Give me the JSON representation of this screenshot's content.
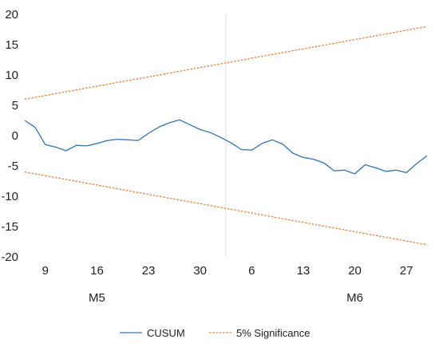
{
  "chart_data": {
    "type": "line",
    "title": "",
    "xlabel": "",
    "ylabel": "",
    "ylim": [
      -20,
      20
    ],
    "grid": false,
    "legend_position": "bottom",
    "y_ticks": [
      20,
      15,
      10,
      5,
      0,
      -5,
      -10,
      -15,
      -20
    ],
    "x_tick_labels": [
      {
        "label": "9",
        "index": 2
      },
      {
        "label": "16",
        "index": 7
      },
      {
        "label": "23",
        "index": 12
      },
      {
        "label": "30",
        "index": 17
      },
      {
        "label": "6",
        "index": 22
      },
      {
        "label": "13",
        "index": 27
      },
      {
        "label": "20",
        "index": 32
      },
      {
        "label": "27",
        "index": 37
      }
    ],
    "month_labels": [
      {
        "label": "M5",
        "index": 7
      },
      {
        "label": "M6",
        "index": 32
      }
    ],
    "month_divider_index": 19.5,
    "n_points": 40,
    "series": [
      {
        "name": "CUSUM",
        "color": "#2e75b6",
        "style": "solid",
        "values": [
          2.5,
          1.4,
          -1.5,
          -1.9,
          -2.5,
          -1.6,
          -1.7,
          -1.3,
          -0.8,
          -0.6,
          -0.7,
          -0.8,
          0.4,
          1.4,
          2.1,
          2.6,
          1.8,
          1.0,
          0.5,
          -0.3,
          -1.2,
          -2.3,
          -2.4,
          -1.3,
          -0.7,
          -1.4,
          -2.9,
          -3.6,
          -3.9,
          -4.5,
          -5.8,
          -5.7,
          -6.3,
          -4.8,
          -5.3,
          -5.9,
          -5.7,
          -6.1,
          -4.6,
          -3.3
        ]
      },
      {
        "name": "5% Significance",
        "color": "#ed7d31",
        "style": "dashed",
        "start": 6.0,
        "end": 18.0
      },
      {
        "name": "5% Significance",
        "color": "#ed7d31",
        "style": "dashed",
        "start": -6.0,
        "end": -18.0
      }
    ],
    "legend": [
      {
        "label": "CUSUM",
        "color": "#2e75b6",
        "style": "solid"
      },
      {
        "label": "5% Significance",
        "color": "#ed7d31",
        "style": "dashed"
      }
    ]
  }
}
